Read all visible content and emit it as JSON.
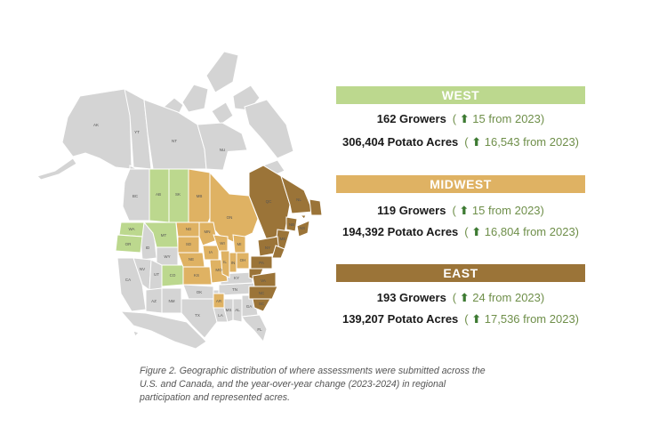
{
  "colors": {
    "west": "#bcd88e",
    "midwest": "#dfb263",
    "east": "#9b7438",
    "base": "#d4d4d4",
    "border": "#ffffff",
    "arrow": "#3d7a32",
    "change_text": "#6f8f4a"
  },
  "map": {
    "labels": {
      "ak": "AK",
      "yt": "YT",
      "nt": "NT",
      "nu": "NU",
      "bc": "BC",
      "ab": "AB",
      "sk": "SK",
      "mb": "MB",
      "on": "ON",
      "qc": "QC",
      "nl": "NL",
      "nb": "NB",
      "ns": "NS",
      "wa": "WA",
      "or": "OR",
      "id": "ID",
      "mt": "MT",
      "wy": "WY",
      "ca": "CA",
      "nv": "NV",
      "ut": "UT",
      "co": "CO",
      "az": "AZ",
      "nm": "NM",
      "nd": "ND",
      "sd": "SD",
      "ne": "NE",
      "ks": "KS",
      "ok": "OK",
      "tx": "TX",
      "mn": "MN",
      "ia": "IA",
      "mo": "MO",
      "ar": "AR",
      "la": "LA",
      "wi": "WI",
      "il": "IL",
      "mi": "MI",
      "in": "IN",
      "oh": "OH",
      "ky": "KY",
      "tn": "TN",
      "ms": "MS",
      "al": "AL",
      "ga": "GA",
      "fl": "FL",
      "sc": "SC",
      "nc": "NC",
      "va": "VA",
      "pa": "PA",
      "ny": "NY",
      "me": "ME"
    }
  },
  "regions": [
    {
      "name": "WEST",
      "growers": "162 Growers",
      "growers_change": "15 from 2023",
      "acres": "306,404 Potato Acres",
      "acres_change": "16,543 from 2023"
    },
    {
      "name": "MIDWEST",
      "growers": "119 Growers",
      "growers_change": "15 from 2023",
      "acres": "194,392 Potato Acres",
      "acres_change": "16,804 from 2023"
    },
    {
      "name": "EAST",
      "growers": "193 Growers",
      "growers_change": "24 from 2023",
      "acres": "139,207 Potato Acres",
      "acres_change": "17,536 from 2023"
    }
  ],
  "caption": "Figure 2. Geographic distribution of where assessments were submitted across the U.S. and Canada, and the year-over-year change (2023-2024) in regional participation and represented acres."
}
